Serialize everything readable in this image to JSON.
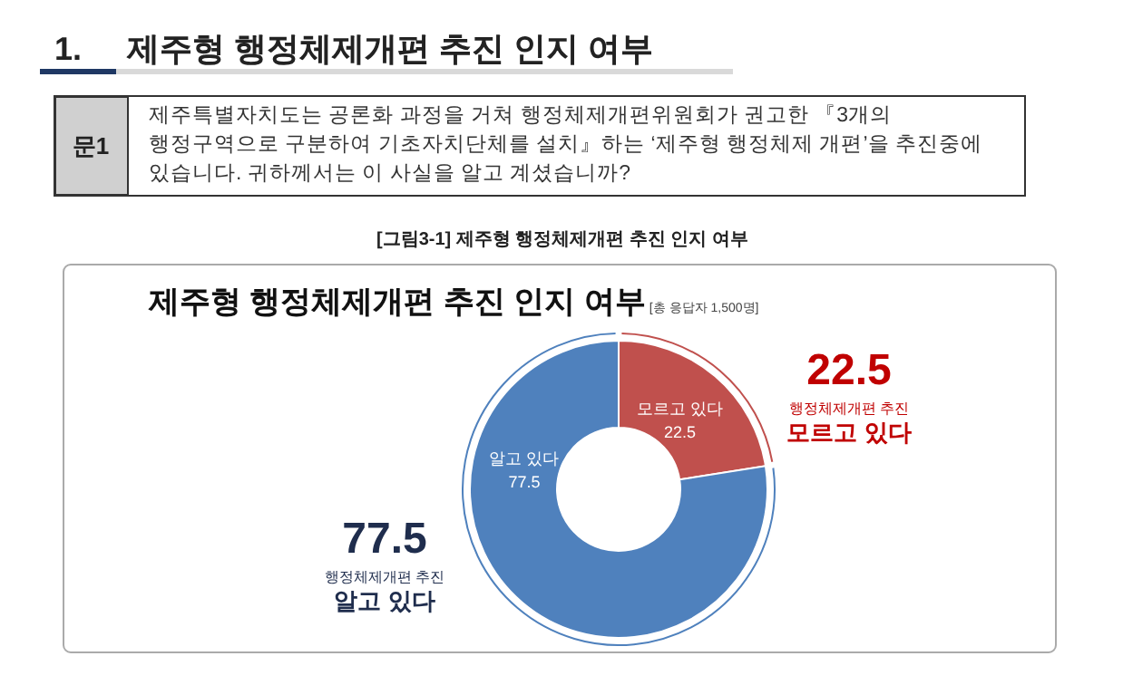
{
  "chart_data": {
    "type": "donut",
    "title": "제주형 행정체제개편 추진 인지 여부",
    "subtitle": "[총 응답자 1,500명]",
    "categories": [
      "모르고 있다",
      "알고 있다"
    ],
    "values": [
      22.5,
      77.5
    ],
    "colors": [
      "#c0504d",
      "#4f81bd"
    ],
    "data_labels": true,
    "annotations": [
      "1.",
      "제주형 행정체제개편 추진 인지 여부",
      "문1",
      "제주특별자치도는 공론화 과정을 거쳐 행정체제개편위원회가 권고한 『3개의 행정구역으로 구분하여 기초자치단체를 설치』하는 ‘제주형 행정체제 개편’을 추진중에 있습니다. 귀하께서는 이 사실을 알고 계셨습니까?",
      "[그림3-1] 제주형 행정체제개편 추진 인지 여부",
      "행정체제개편 추진",
      "행정체제개편 추진",
      "22.5",
      "77.5"
    ]
  }
}
